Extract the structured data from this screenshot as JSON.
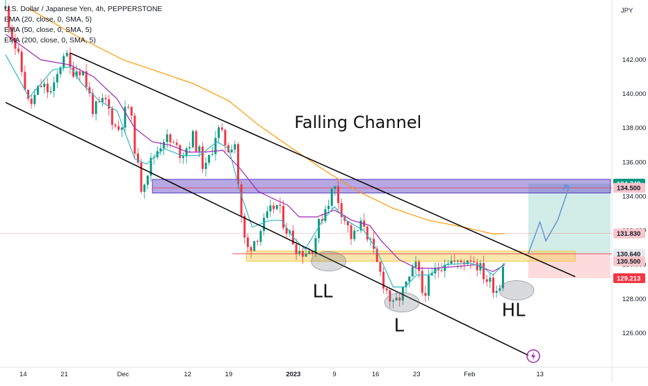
{
  "header": {
    "symbol_line": "U.S. Dollar / Japanese Yen, 4h, PEPPERSTONE",
    "indicators": [
      "EMA (20, close, 0, SMA, 5)",
      "EMA (50, close, 0, SMA, 5)",
      "EMA (200, close, 0, SMA, 5)"
    ],
    "currency": "JPY"
  },
  "chart_data": {
    "type": "candlestick",
    "title": "Falling Channel",
    "ylim": [
      124.0,
      145.5
    ],
    "y_ticks": [
      126.0,
      128.0,
      130.0,
      132.0,
      134.0,
      136.0,
      138.0,
      140.0,
      142.0
    ],
    "x_ticks": [
      {
        "label": "14",
        "t": 3
      },
      {
        "label": "21",
        "t": 10
      },
      {
        "label": "Dec",
        "t": 20
      },
      {
        "label": "12",
        "t": 31
      },
      {
        "label": "19",
        "t": 38
      },
      {
        "label": "2023",
        "t": 49
      },
      {
        "label": "9",
        "t": 56
      },
      {
        "label": "16",
        "t": 63
      },
      {
        "label": "23",
        "t": 70
      },
      {
        "label": "Feb",
        "t": 79
      },
      {
        "label": "13",
        "t": 91
      }
    ],
    "x_range": [
      0,
      103
    ],
    "price_path": [
      [
        0,
        145.0
      ],
      [
        3,
        141.0
      ],
      [
        4,
        139.2
      ],
      [
        6,
        140.5
      ],
      [
        8,
        140.0
      ],
      [
        10,
        142.6
      ],
      [
        11,
        141.4
      ],
      [
        13,
        141.5
      ],
      [
        15,
        139.0
      ],
      [
        17,
        139.6
      ],
      [
        19,
        137.8
      ],
      [
        21,
        139.4
      ],
      [
        23,
        134.5
      ],
      [
        25,
        136.2
      ],
      [
        27,
        137.5
      ],
      [
        30,
        136.5
      ],
      [
        32,
        137.5
      ],
      [
        34,
        135.5
      ],
      [
        35,
        136.6
      ],
      [
        36,
        138.0
      ],
      [
        38,
        136.8
      ],
      [
        39,
        137.4
      ],
      [
        40,
        133.0
      ],
      [
        41,
        130.8
      ],
      [
        43,
        131.8
      ],
      [
        46,
        133.6
      ],
      [
        48,
        132.0
      ],
      [
        50,
        130.8
      ],
      [
        52,
        130.8
      ],
      [
        54,
        133.0
      ],
      [
        56,
        134.6
      ],
      [
        57,
        133.4
      ],
      [
        59,
        131.5
      ],
      [
        61,
        132.5
      ],
      [
        63,
        130.2
      ],
      [
        65,
        128.4
      ],
      [
        66,
        127.5
      ],
      [
        68,
        128.6
      ],
      [
        70,
        130.0
      ],
      [
        71,
        128.3
      ],
      [
        73,
        129.5
      ],
      [
        75,
        130.4
      ],
      [
        77,
        130.0
      ],
      [
        79,
        130.5
      ],
      [
        80,
        130.2
      ],
      [
        82,
        129.1
      ],
      [
        84,
        128.5
      ],
      [
        85,
        131.0
      ]
    ],
    "ema20_path": [
      [
        0,
        142.3
      ],
      [
        4,
        139.8
      ],
      [
        8,
        141.4
      ],
      [
        11,
        141.6
      ],
      [
        13,
        140.6
      ],
      [
        16,
        139.6
      ],
      [
        19,
        139.0
      ],
      [
        22,
        136.2
      ],
      [
        24,
        135.9
      ],
      [
        27,
        136.8
      ],
      [
        30,
        136.4
      ],
      [
        33,
        136.4
      ],
      [
        36,
        137.2
      ],
      [
        38,
        136.8
      ],
      [
        40,
        134.2
      ],
      [
        42,
        132.2
      ],
      [
        45,
        132.6
      ],
      [
        47,
        132.6
      ],
      [
        49,
        131.6
      ],
      [
        51,
        130.9
      ],
      [
        54,
        132.6
      ],
      [
        56,
        133.4
      ],
      [
        58,
        132.6
      ],
      [
        61,
        132.0
      ],
      [
        63,
        131.0
      ],
      [
        66,
        128.7
      ],
      [
        68,
        128.7
      ],
      [
        70,
        129.4
      ],
      [
        72,
        129.4
      ],
      [
        75,
        130.0
      ],
      [
        79,
        130.1
      ],
      [
        81,
        129.9
      ],
      [
        83,
        129.4
      ],
      [
        85,
        130.1
      ]
    ],
    "ema50_path": [
      [
        0,
        143.5
      ],
      [
        6,
        142.0
      ],
      [
        11,
        141.7
      ],
      [
        15,
        141.0
      ],
      [
        19,
        139.7
      ],
      [
        22,
        138.0
      ],
      [
        25,
        137.2
      ],
      [
        28,
        137.0
      ],
      [
        31,
        136.6
      ],
      [
        34,
        136.6
      ],
      [
        37,
        136.7
      ],
      [
        40,
        135.6
      ],
      [
        43,
        134.3
      ],
      [
        46,
        133.8
      ],
      [
        48,
        133.5
      ],
      [
        50,
        132.8
      ],
      [
        53,
        132.8
      ],
      [
        56,
        133.2
      ],
      [
        59,
        132.6
      ],
      [
        62,
        132.3
      ],
      [
        64,
        131.4
      ],
      [
        67,
        130.3
      ],
      [
        70,
        129.8
      ],
      [
        73,
        129.8
      ],
      [
        77,
        129.9
      ],
      [
        80,
        130.0
      ],
      [
        83,
        129.6
      ],
      [
        85,
        130.0
      ]
    ],
    "ema200_path": [
      [
        4,
        145.0
      ],
      [
        12,
        143.4
      ],
      [
        20,
        142.0
      ],
      [
        26,
        141.3
      ],
      [
        32,
        140.6
      ],
      [
        38,
        139.6
      ],
      [
        43,
        138.2
      ],
      [
        48,
        137.0
      ],
      [
        54,
        135.6
      ],
      [
        60,
        134.3
      ],
      [
        66,
        133.3
      ],
      [
        72,
        132.6
      ],
      [
        78,
        132.2
      ],
      [
        83,
        131.8
      ],
      [
        85,
        131.83
      ]
    ],
    "channel": {
      "upper": {
        "from": [
          11,
          142.4
        ],
        "to": [
          97,
          129.3
        ]
      },
      "lower": {
        "from": [
          0,
          139.5
        ],
        "to": [
          89,
          124.7
        ]
      }
    },
    "zones": [
      {
        "name": "resistance-zone",
        "t0": 25,
        "t1": 103,
        "y0": 134.2,
        "y1": 135.0,
        "color": "#5b3fc4"
      },
      {
        "name": "support-zone",
        "t0": 41,
        "t1": 97,
        "y0": 130.2,
        "y1": 130.8,
        "color": "#f2c94c"
      }
    ],
    "position": {
      "entry": 130.64,
      "target": 134.749,
      "stop": 129.213,
      "t0": 89,
      "t1": 103
    },
    "projection_path": [
      [
        89,
        130.64
      ],
      [
        91,
        132.5
      ],
      [
        92,
        131.4
      ],
      [
        94,
        132.6
      ],
      [
        96,
        134.6
      ]
    ],
    "ellipses": [
      {
        "t": 55,
        "y": 130.2,
        "label": ""
      },
      {
        "t": 67.5,
        "y": 127.8,
        "label": ""
      },
      {
        "t": 87,
        "y": 128.5,
        "label": ""
      }
    ],
    "annotations": [
      {
        "text": "Falling Channel",
        "t": 60,
        "y": 138.0
      },
      {
        "text": "LL",
        "t": 54,
        "y": 128.1
      },
      {
        "text": "L",
        "t": 67,
        "y": 126.1
      },
      {
        "text": "HL",
        "t": 86.5,
        "y": 127.0
      }
    ],
    "price_tags": [
      {
        "value": "134.749",
        "y": 134.749,
        "bg": "#089981",
        "fg": "#ffffff"
      },
      {
        "value": "134.500",
        "y": 134.5,
        "bg": "#f7c6cc",
        "fg": "#131722"
      },
      {
        "value": "131.830",
        "y": 131.83,
        "bg": "#f7c6cc",
        "fg": "#131722"
      },
      {
        "value": "130.640",
        "y": 130.64,
        "bg": "#e8e8ee",
        "fg": "#131722"
      },
      {
        "value": "130.500",
        "y": 130.2,
        "bg": "#f7c6cc",
        "fg": "#131722"
      },
      {
        "value": "129.213",
        "y": 129.213,
        "bg": "#f23645",
        "fg": "#ffffff"
      }
    ],
    "colors": {
      "up": "#089981",
      "down": "#f23645",
      "ema20": "#2fb7c4",
      "ema50": "#9c27b0",
      "ema200": "#ff9800",
      "channel": "#000000"
    }
  }
}
